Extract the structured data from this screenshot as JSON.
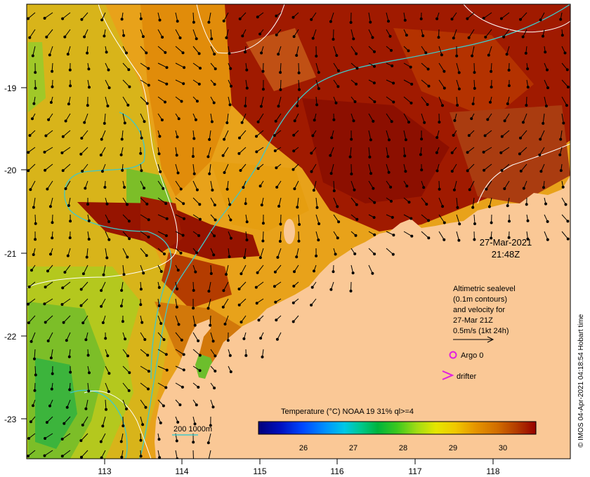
{
  "axes": {
    "lat_ticks": [
      "-19",
      "-20",
      "-21",
      "-22",
      "-23"
    ],
    "lon_ticks": [
      "113",
      "114",
      "115",
      "116",
      "117",
      "118"
    ]
  },
  "timestamp": {
    "date": "27-Mar-2021",
    "time": "21:48Z"
  },
  "legend": {
    "altimetry": {
      "line1": "Altimetric sealevel",
      "line2": "(0.1m contours)",
      "line3": "and velocity for",
      "line4": "27-Mar 21Z",
      "scale_label": "0.5m/s (1kt 24h)"
    },
    "argo_label": "Argo 0",
    "drifter_label": "drifter",
    "isobaths_label": "200  1000m"
  },
  "colorbar": {
    "title": "Temperature (°C) NOAA 19 31% ql>=4",
    "tick_labels": [
      "26",
      "27",
      "28",
      "29",
      "30"
    ],
    "colors": [
      "#00007a",
      "#0010c0",
      "#0048ff",
      "#0090ff",
      "#00c8e6",
      "#00c88c",
      "#00b43c",
      "#3cc81e",
      "#a0dc14",
      "#e6e600",
      "#f0c800",
      "#e69600",
      "#d26e00",
      "#b43c00",
      "#960000"
    ]
  },
  "credit": "© IMOS 04-Apr-2021 04:18:54 Hobart time",
  "colors": {
    "land": "#fac896",
    "coastline_isobath": "#40c8c8",
    "sealevel_contour": "#ffffff",
    "argo_marker": "#e020e0",
    "drifter_marker": "#e020e0"
  }
}
